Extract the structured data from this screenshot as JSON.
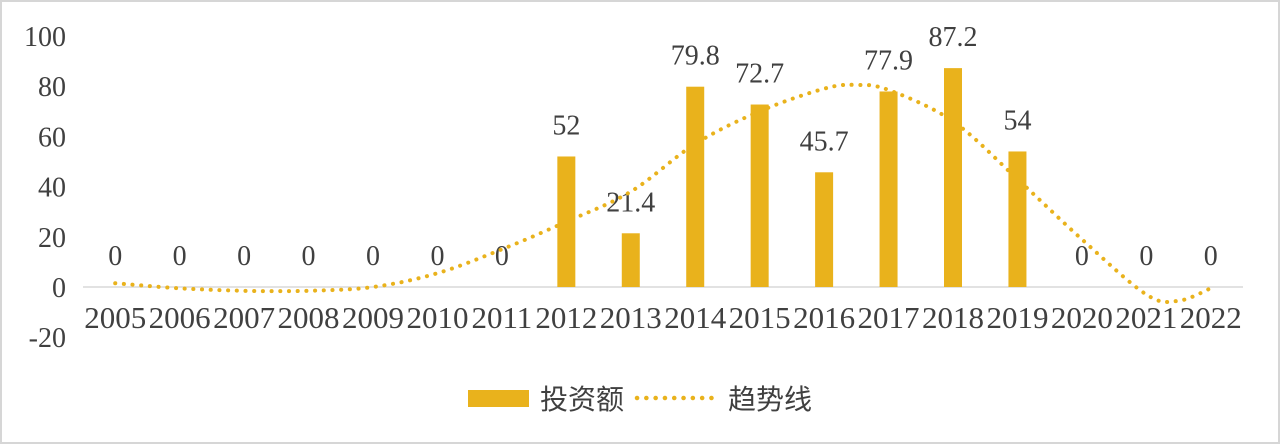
{
  "chart_data": {
    "type": "bar",
    "title": "",
    "categories": [
      "2005",
      "2006",
      "2007",
      "2008",
      "2009",
      "2010",
      "2011",
      "2012",
      "2013",
      "2014",
      "2015",
      "2016",
      "2017",
      "2018",
      "2019",
      "2020",
      "2021",
      "2022"
    ],
    "series": [
      {
        "name": "投资额",
        "type": "bar",
        "values": [
          0,
          0,
          0,
          0,
          0,
          0,
          0,
          52,
          21.4,
          79.8,
          72.7,
          45.7,
          77.9,
          87.2,
          54,
          0,
          0,
          0
        ],
        "labels": [
          "0",
          "0",
          "0",
          "0",
          "0",
          "0",
          "0",
          "52",
          "21.4",
          "79.8",
          "72.7",
          "45.7",
          "77.9",
          "87.2",
          "54",
          "0",
          "0",
          "0"
        ]
      },
      {
        "name": "趋势线",
        "type": "dotted-line",
        "points": [
          {
            "x": 2005,
            "v": 1.5
          },
          {
            "x": 2006,
            "v": -0.5
          },
          {
            "x": 2007,
            "v": -1.5
          },
          {
            "x": 2008,
            "v": -1.5
          },
          {
            "x": 2009,
            "v": 0
          },
          {
            "x": 2010,
            "v": 5.5
          },
          {
            "x": 2011,
            "v": 15
          },
          {
            "x": 2012,
            "v": 26
          },
          {
            "x": 2013,
            "v": 38
          },
          {
            "x": 2014,
            "v": 57
          },
          {
            "x": 2015,
            "v": 70
          },
          {
            "x": 2016,
            "v": 79
          },
          {
            "x": 2016.5,
            "v": 80.5
          },
          {
            "x": 2017,
            "v": 78.5
          },
          {
            "x": 2018,
            "v": 66
          },
          {
            "x": 2019,
            "v": 43
          },
          {
            "x": 2020,
            "v": 19
          },
          {
            "x": 2021,
            "v": -3
          },
          {
            "x": 2021.5,
            "v": -5.5
          },
          {
            "x": 2022,
            "v": -0.5
          }
        ]
      }
    ],
    "y_axis": {
      "ticks": [
        100,
        80,
        60,
        40,
        20,
        0,
        -20
      ],
      "min": -20,
      "max": 100
    },
    "x_axis": {
      "label": ""
    },
    "grid": "none",
    "legend_position": "bottom"
  },
  "colors": {
    "accent_gold": "#E9B21C",
    "text": "#404040",
    "zero_line": "#D9D9D9",
    "frame_border": "#D6D6D6"
  }
}
